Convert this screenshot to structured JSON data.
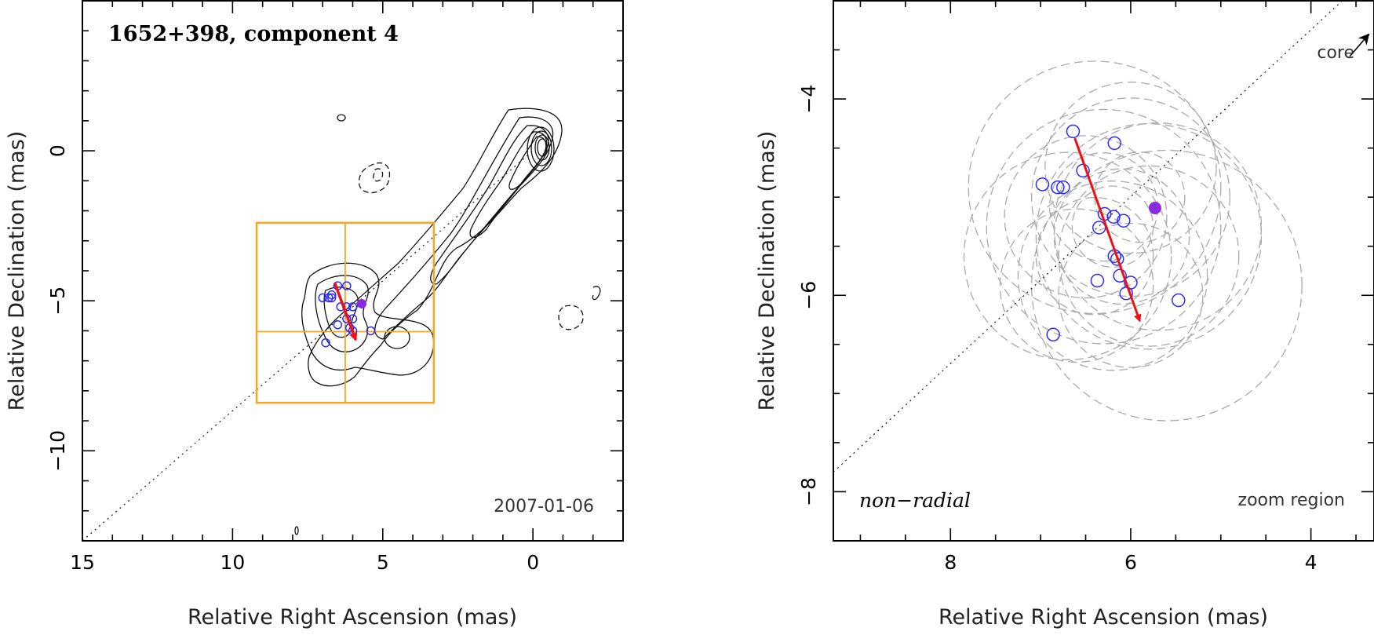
{
  "chart_data": [
    {
      "type": "scatter",
      "title": "1652+398, component 4",
      "xlabel": "Relative Right Ascension (mas)",
      "ylabel": "Relative Declination (mas)",
      "xlim": [
        15,
        -3
      ],
      "ylim": [
        -13,
        5
      ],
      "xticks": [
        15,
        10,
        5,
        0
      ],
      "yticks": [
        0,
        -5,
        -10
      ],
      "annotation": "2007-01-06",
      "component_positions": [
        {
          "x": 6.7,
          "y": -4.8
        },
        {
          "x": 6.5,
          "y": -4.5
        },
        {
          "x": 6.2,
          "y": -4.5
        },
        {
          "x": 7.0,
          "y": -4.9
        },
        {
          "x": 6.8,
          "y": -4.9
        },
        {
          "x": 6.7,
          "y": -4.9
        },
        {
          "x": 6.4,
          "y": -5.2
        },
        {
          "x": 6.2,
          "y": -5.2
        },
        {
          "x": 6.0,
          "y": -5.2
        },
        {
          "x": 6.2,
          "y": -5.6
        },
        {
          "x": 6.0,
          "y": -5.6
        },
        {
          "x": 6.5,
          "y": -5.8
        },
        {
          "x": 6.1,
          "y": -5.9
        },
        {
          "x": 6.0,
          "y": -6.0
        },
        {
          "x": 5.4,
          "y": -6.0
        },
        {
          "x": 6.9,
          "y": -6.4
        }
      ],
      "reference_position": {
        "x": 5.7,
        "y": -5.1
      },
      "motion_vector": {
        "from": {
          "x": 6.6,
          "y": -4.4
        },
        "to": {
          "x": 5.9,
          "y": -6.3
        }
      },
      "zoom_box": {
        "x": [
          9.2,
          3.3
        ],
        "y": [
          -2.4,
          -8.4
        ]
      },
      "core_direction_line": {
        "from": {
          "x": 15,
          "y": -13
        },
        "to": {
          "x": 0,
          "y": 0
        }
      }
    },
    {
      "type": "scatter",
      "title": "",
      "xlabel": "Relative Right Ascension (mas)",
      "ylabel": "Relative Declination (mas)",
      "xlim": [
        9.3,
        3.3
      ],
      "ylim": [
        -8.5,
        -3.0
      ],
      "xticks": [
        8,
        6,
        4
      ],
      "yticks": [
        -4,
        -6,
        -8
      ],
      "label_left": "non−radial",
      "label_right": "zoom region",
      "core_label": "core",
      "component_positions": [
        {
          "x": 6.64,
          "y": -4.33
        },
        {
          "x": 6.18,
          "y": -4.45
        },
        {
          "x": 6.53,
          "y": -4.73
        },
        {
          "x": 6.98,
          "y": -4.87
        },
        {
          "x": 6.81,
          "y": -4.9
        },
        {
          "x": 6.75,
          "y": -4.9
        },
        {
          "x": 6.29,
          "y": -5.17
        },
        {
          "x": 6.19,
          "y": -5.2
        },
        {
          "x": 6.08,
          "y": -5.24
        },
        {
          "x": 6.35,
          "y": -5.31
        },
        {
          "x": 6.18,
          "y": -5.6
        },
        {
          "x": 6.15,
          "y": -5.63
        },
        {
          "x": 6.12,
          "y": -5.8
        },
        {
          "x": 6.37,
          "y": -5.85
        },
        {
          "x": 6.0,
          "y": -5.87
        },
        {
          "x": 6.05,
          "y": -5.98
        },
        {
          "x": 5.47,
          "y": -6.05
        },
        {
          "x": 6.86,
          "y": -6.4
        }
      ],
      "reference_position": {
        "x": 5.73,
        "y": -5.11
      },
      "motion_vector": {
        "from": {
          "x": 6.62,
          "y": -4.4
        },
        "to": {
          "x": 5.9,
          "y": -6.26
        }
      },
      "component_sizes": [
        {
          "x": 6.4,
          "y": -4.9,
          "d": 2.8
        },
        {
          "x": 6.0,
          "y": -5.0,
          "d": 2.2
        },
        {
          "x": 5.7,
          "y": -5.3,
          "d": 2.3
        },
        {
          "x": 6.3,
          "y": -5.3,
          "d": 2.6
        },
        {
          "x": 6.7,
          "y": -5.6,
          "d": 2.3
        },
        {
          "x": 5.8,
          "y": -5.6,
          "d": 2.0
        },
        {
          "x": 6.2,
          "y": -5.8,
          "d": 2.1
        },
        {
          "x": 5.6,
          "y": -5.9,
          "d": 3.0
        },
        {
          "x": 6.0,
          "y": -4.7,
          "d": 1.9
        },
        {
          "x": 6.5,
          "y": -5.2,
          "d": 1.8
        },
        {
          "x": 6.1,
          "y": -5.4,
          "d": 1.5
        },
        {
          "x": 6.3,
          "y": -5.1,
          "d": 1.2
        },
        {
          "x": 6.6,
          "y": -5.9,
          "d": 1.7
        },
        {
          "x": 6.0,
          "y": -6.0,
          "d": 1.6
        },
        {
          "x": 5.9,
          "y": -5.0,
          "d": 1.0
        },
        {
          "x": 6.4,
          "y": -5.6,
          "d": 1.3
        },
        {
          "x": 6.2,
          "y": -5.3,
          "d": 0.9
        },
        {
          "x": 5.8,
          "y": -5.4,
          "d": 2.5
        }
      ],
      "core_direction_line": {
        "from": {
          "x": 9.3,
          "y": -7.8
        },
        "to": {
          "x": 3.3,
          "y": -2.7
        }
      }
    }
  ],
  "colors": {
    "component_circle": "#2b2bff",
    "reference_point": "#8a2be2",
    "motion_vector": "#ee1111",
    "zoom_box": "#f5a623",
    "component_size": "#aaaaaa"
  }
}
